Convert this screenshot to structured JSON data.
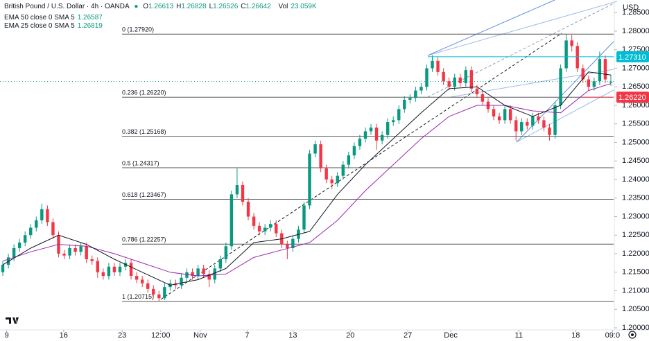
{
  "chart_data": {
    "type": "candlestick",
    "title": "British Pound / U.S. Dollar · 4h · OANDA",
    "ohlc_labels": [
      "O",
      "H",
      "L",
      "C"
    ],
    "volume_label": "Vol",
    "volume": {
      "value": 23059,
      "label": "23.059K"
    },
    "currency": "USD",
    "up_color": "#089981",
    "down_color": "#f23645",
    "open": [
      1.215,
      1.217,
      1.219,
      1.2215,
      1.223,
      1.225,
      1.227,
      1.229,
      1.232,
      1.2285,
      1.225,
      1.22,
      1.2195,
      1.2215,
      1.2205,
      1.222,
      1.2185,
      1.218,
      1.215,
      1.214,
      1.2165,
      1.215,
      1.2165,
      1.2175,
      1.214,
      1.213,
      1.212,
      1.2105,
      1.209,
      1.208,
      1.211,
      1.212,
      1.2115,
      1.2135,
      1.215,
      1.214,
      1.216,
      1.2145,
      1.213,
      1.216,
      1.2185,
      1.222,
      1.236,
      1.2385,
      1.234,
      1.23,
      1.2275,
      1.226,
      1.227,
      1.228,
      1.2255,
      1.2225,
      1.2215,
      1.224,
      1.2265,
      1.233,
      1.247,
      1.2495,
      1.243,
      1.24,
      1.239,
      1.241,
      1.244,
      1.2465,
      1.249,
      1.251,
      1.253,
      1.254,
      1.2505,
      1.252,
      1.2555,
      1.256,
      1.259,
      1.2615,
      1.262,
      1.264,
      1.265,
      1.27,
      1.272,
      1.269,
      1.2665,
      1.265,
      1.2675,
      1.266,
      1.2695,
      1.2645,
      1.263,
      1.261,
      1.259,
      1.257,
      1.256,
      1.259,
      1.256,
      1.253,
      1.2555,
      1.2545,
      1.257,
      1.256,
      1.254,
      1.252,
      1.26,
      1.27,
      1.2775,
      1.276,
      1.27,
      1.267,
      1.265,
      1.2665,
      1.2725,
      1.26613
    ],
    "high": [
      1.218,
      1.22,
      1.2225,
      1.224,
      1.226,
      1.228,
      1.23,
      1.2335,
      1.233,
      1.2295,
      1.226,
      1.221,
      1.2225,
      1.2225,
      1.223,
      1.223,
      1.2195,
      1.219,
      1.216,
      1.2175,
      1.2175,
      1.2175,
      1.2185,
      1.2185,
      1.215,
      1.214,
      1.213,
      1.2115,
      1.21,
      1.212,
      1.213,
      1.213,
      1.2145,
      1.216,
      1.216,
      1.217,
      1.217,
      1.2155,
      1.217,
      1.2195,
      1.223,
      1.237,
      1.243,
      1.2395,
      1.235,
      1.231,
      1.2285,
      1.228,
      1.229,
      1.229,
      1.2265,
      1.2235,
      1.225,
      1.2275,
      1.234,
      1.248,
      1.2505,
      1.2505,
      1.244,
      1.241,
      1.242,
      1.245,
      1.2475,
      1.25,
      1.252,
      1.254,
      1.255,
      1.255,
      1.253,
      1.2565,
      1.257,
      1.26,
      1.2625,
      1.263,
      1.265,
      1.266,
      1.271,
      1.2735,
      1.273,
      1.27,
      1.2675,
      1.2685,
      1.2685,
      1.2705,
      1.2705,
      1.2655,
      1.264,
      1.262,
      1.26,
      1.258,
      1.26,
      1.26,
      1.257,
      1.2565,
      1.2565,
      1.258,
      1.258,
      1.257,
      1.255,
      1.261,
      1.271,
      1.2792,
      1.279,
      1.277,
      1.271,
      1.268,
      1.2675,
      1.2745,
      1.2735,
      1.26828
    ],
    "low": [
      1.214,
      1.216,
      1.218,
      1.2205,
      1.222,
      1.224,
      1.226,
      1.228,
      1.2275,
      1.224,
      1.219,
      1.2185,
      1.2185,
      1.2195,
      1.2195,
      1.2175,
      1.217,
      1.2135,
      1.213,
      1.213,
      1.214,
      1.214,
      1.2155,
      1.213,
      1.212,
      1.211,
      1.2095,
      1.208,
      1.2072,
      1.2075,
      1.21,
      1.2105,
      1.2105,
      1.2125,
      1.213,
      1.213,
      1.2135,
      1.211,
      1.212,
      1.215,
      1.2175,
      1.221,
      1.235,
      1.233,
      1.229,
      1.2265,
      1.225,
      1.225,
      1.226,
      1.2245,
      1.2215,
      1.2185,
      1.2205,
      1.223,
      1.2255,
      1.232,
      1.246,
      1.242,
      1.239,
      1.2375,
      1.238,
      1.24,
      1.243,
      1.2455,
      1.248,
      1.25,
      1.252,
      1.248,
      1.2495,
      1.251,
      1.2545,
      1.255,
      1.258,
      1.2605,
      1.261,
      1.263,
      1.264,
      1.269,
      1.268,
      1.2655,
      1.264,
      1.264,
      1.265,
      1.265,
      1.2635,
      1.262,
      1.26,
      1.258,
      1.256,
      1.255,
      1.255,
      1.255,
      1.2505,
      1.252,
      1.2535,
      1.2535,
      1.255,
      1.253,
      1.2505,
      1.251,
      1.259,
      1.269,
      1.2745,
      1.269,
      1.266,
      1.264,
      1.264,
      1.2655,
      1.266,
      1.26526
    ],
    "close": [
      1.217,
      1.219,
      1.2215,
      1.223,
      1.225,
      1.227,
      1.229,
      1.232,
      1.2285,
      1.225,
      1.22,
      1.2195,
      1.2215,
      1.2205,
      1.222,
      1.2185,
      1.218,
      1.215,
      1.214,
      1.2165,
      1.215,
      1.2165,
      1.2175,
      1.214,
      1.213,
      1.212,
      1.2105,
      1.209,
      1.208,
      1.211,
      1.212,
      1.2115,
      1.2135,
      1.215,
      1.214,
      1.216,
      1.2145,
      1.213,
      1.216,
      1.2185,
      1.222,
      1.236,
      1.2385,
      1.234,
      1.23,
      1.2275,
      1.226,
      1.227,
      1.228,
      1.2255,
      1.2225,
      1.2215,
      1.224,
      1.2265,
      1.233,
      1.247,
      1.2495,
      1.243,
      1.24,
      1.239,
      1.241,
      1.244,
      1.2465,
      1.249,
      1.251,
      1.253,
      1.254,
      1.2505,
      1.252,
      1.2555,
      1.256,
      1.259,
      1.2615,
      1.262,
      1.264,
      1.265,
      1.27,
      1.272,
      1.269,
      1.2665,
      1.265,
      1.2675,
      1.266,
      1.2695,
      1.2645,
      1.263,
      1.261,
      1.259,
      1.257,
      1.256,
      1.259,
      1.256,
      1.253,
      1.2555,
      1.2545,
      1.257,
      1.256,
      1.254,
      1.252,
      1.26,
      1.27,
      1.2775,
      1.276,
      1.27,
      1.267,
      1.265,
      1.2665,
      1.2725,
      1.267,
      1.26642
    ],
    "series": [
      {
        "name": "EMA 50 close 0 SMA 5",
        "color": "#9c27b0",
        "x": [
          0,
          5,
          10,
          15,
          20,
          25,
          30,
          35,
          40,
          45,
          50,
          55,
          60,
          65,
          70,
          75,
          80,
          85,
          90,
          95,
          100,
          105,
          109
        ],
        "values": [
          1.218,
          1.2205,
          1.2225,
          1.222,
          1.22,
          1.2175,
          1.215,
          1.214,
          1.2145,
          1.219,
          1.221,
          1.223,
          1.229,
          1.237,
          1.244,
          1.251,
          1.257,
          1.26,
          1.26,
          1.2585,
          1.258,
          1.264,
          1.26587
        ]
      },
      {
        "name": "EMA 25 close 0 SMA 5",
        "color": "#131722",
        "x": [
          0,
          5,
          10,
          15,
          20,
          25,
          30,
          35,
          40,
          45,
          50,
          55,
          60,
          65,
          70,
          75,
          80,
          85,
          90,
          95,
          100,
          105,
          109
        ],
        "values": [
          1.217,
          1.2215,
          1.225,
          1.2225,
          1.2185,
          1.215,
          1.2115,
          1.213,
          1.216,
          1.223,
          1.224,
          1.226,
          1.236,
          1.244,
          1.251,
          1.258,
          1.2645,
          1.265,
          1.26,
          1.257,
          1.26,
          1.269,
          1.26819
        ]
      }
    ],
    "xlim": [
      -0.5,
      109.5
    ],
    "xticks": [
      {
        "value": 0.7,
        "label": "9"
      },
      {
        "value": 10.9,
        "label": "16"
      },
      {
        "value": 21.4,
        "label": "23"
      },
      {
        "value": 28.3,
        "label": "12:00"
      },
      {
        "value": 35.4,
        "label": "Nov"
      },
      {
        "value": 43.8,
        "label": "7"
      },
      {
        "value": 52.0,
        "label": "13"
      },
      {
        "value": 62.3,
        "label": "20"
      },
      {
        "value": 72.6,
        "label": "27"
      },
      {
        "value": 80.3,
        "label": "Dec"
      },
      {
        "value": 92.5,
        "label": "11"
      },
      {
        "value": 102.7,
        "label": "18"
      },
      {
        "value": 109.3,
        "label": "09:0"
      }
    ],
    "ylim": [
      1.19944,
      1.28841
    ],
    "yticks": [
      {
        "value": 1.2,
        "label": "1.20000"
      },
      {
        "value": 1.205,
        "label": "1.20500"
      },
      {
        "value": 1.21,
        "label": "1.21000"
      },
      {
        "value": 1.215,
        "label": "1.21500"
      },
      {
        "value": 1.22,
        "label": "1.22000"
      },
      {
        "value": 1.225,
        "label": "1.22500"
      },
      {
        "value": 1.23,
        "label": "1.23000"
      },
      {
        "value": 1.235,
        "label": "1.23500"
      },
      {
        "value": 1.24,
        "label": "1.24000"
      },
      {
        "value": 1.245,
        "label": "1.24500"
      },
      {
        "value": 1.25,
        "label": "1.25000"
      },
      {
        "value": 1.255,
        "label": "1.25500"
      },
      {
        "value": 1.26,
        "label": "1.26000"
      },
      {
        "value": 1.265,
        "label": "1.26500"
      },
      {
        "value": 1.27,
        "label": "1.27000"
      },
      {
        "value": 1.275,
        "label": "1.27500"
      },
      {
        "value": 1.28,
        "label": "1.28000"
      },
      {
        "value": 1.285,
        "label": "1.28500"
      }
    ],
    "fib_levels": [
      {
        "value": 1.2792,
        "label": "0 (1.27920)"
      },
      {
        "value": 1.2622,
        "label": "0.236 (1.26220)"
      },
      {
        "value": 1.25168,
        "label": "0.382 (1.25168)"
      },
      {
        "value": 1.24317,
        "label": "0.5 (1.24317)"
      },
      {
        "value": 1.23467,
        "label": "0.618 (1.23467)"
      },
      {
        "value": 1.22257,
        "label": "0.786 (1.22257)"
      },
      {
        "value": 1.20715,
        "label": "1 (1.20715)"
      }
    ],
    "price_labels": [
      {
        "value": 1.2731,
        "label": "1.27310",
        "color": "#00bcd4"
      },
      {
        "value": 1.2622,
        "label": "1.26220",
        "color": "#f23645"
      }
    ]
  }
}
